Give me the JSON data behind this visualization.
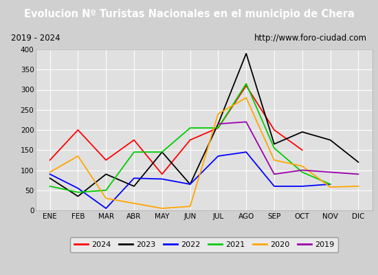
{
  "title": "Evolucion Nº Turistas Nacionales en el municipio de Chera",
  "subtitle_left": "2019 - 2024",
  "subtitle_right": "http://www.foro-ciudad.com",
  "months": [
    "ENE",
    "FEB",
    "MAR",
    "ABR",
    "MAY",
    "JUN",
    "JUL",
    "AGO",
    "SEP",
    "OCT",
    "NOV",
    "DIC"
  ],
  "series": {
    "2024": [
      125,
      200,
      125,
      175,
      90,
      175,
      205,
      310,
      200,
      150,
      null,
      null
    ],
    "2023": [
      80,
      35,
      90,
      60,
      145,
      65,
      215,
      390,
      165,
      195,
      175,
      120
    ],
    "2022": [
      90,
      55,
      5,
      80,
      78,
      65,
      135,
      145,
      60,
      60,
      65,
      null
    ],
    "2021": [
      60,
      45,
      50,
      145,
      145,
      205,
      205,
      315,
      155,
      95,
      65,
      null
    ],
    "2020": [
      95,
      135,
      30,
      null,
      5,
      10,
      240,
      280,
      125,
      110,
      58,
      60
    ],
    "2019": [
      null,
      null,
      null,
      null,
      null,
      null,
      215,
      220,
      90,
      100,
      95,
      90
    ]
  },
  "colors": {
    "2024": "#ff0000",
    "2023": "#000000",
    "2022": "#0000ff",
    "2021": "#00cc00",
    "2020": "#ffa500",
    "2019": "#9900aa"
  },
  "ylim": [
    0,
    400
  ],
  "yticks": [
    0,
    50,
    100,
    150,
    200,
    250,
    300,
    350,
    400
  ],
  "title_bg": "#4472c4",
  "title_color": "#ffffff",
  "plot_bg": "#e0e0e0",
  "grid_color": "#ffffff",
  "outer_bg": "#d0d0d0",
  "legend_fontsize": 8,
  "title_fontsize": 10.5
}
